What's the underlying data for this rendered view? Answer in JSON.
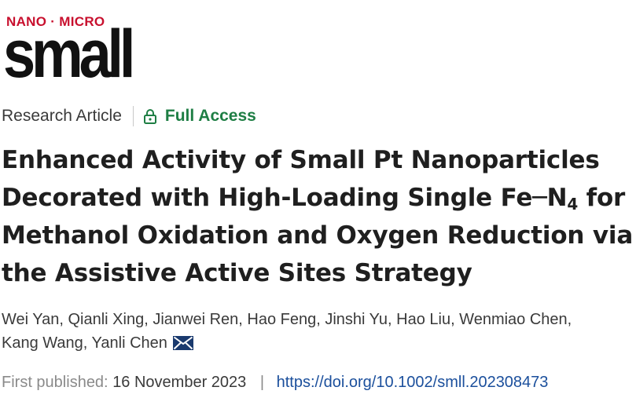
{
  "journal": {
    "kicker": "NANO · MICRO",
    "name": "small"
  },
  "article": {
    "type": "Research Article",
    "access": "Full Access"
  },
  "title": {
    "line1": "Enhanced Activity of Small Pt Nanoparticles",
    "line2_pre": "Decorated with High-Loading Single Fe─N",
    "line2_sub": "4",
    "line2_post": " for",
    "line3": "Methanol Oxidation and Oxygen Reduction via",
    "line4": "the Assistive Active Sites Strategy"
  },
  "authors": {
    "line1": "Wei Yan, Qianli Xing, Jianwei Ren, Hao Feng, Jinshi Yu, Hao Liu, Wenmiao Chen,",
    "line2": "Kang Wang, Yanli Chen"
  },
  "publication": {
    "label": "First published:",
    "date": "16 November 2023",
    "separator": "|",
    "doi": "https://doi.org/10.1002/smll.202308473"
  },
  "colors": {
    "accent_red": "#c8102e",
    "access_green": "#1e7e44",
    "link_blue": "#1b4f9c"
  },
  "icons": {
    "access": "lock-icon",
    "corresponding_author": "mail-icon"
  }
}
